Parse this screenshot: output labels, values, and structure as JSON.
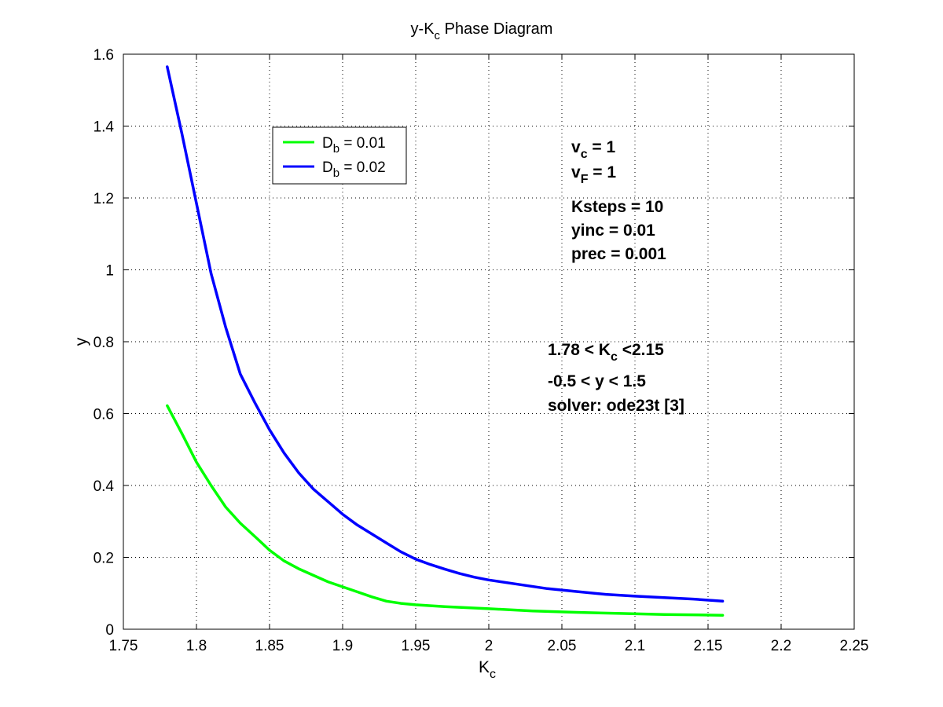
{
  "chart_data": {
    "type": "line",
    "title": "y-K",
    "title_sub": "c",
    "title_rest": " Phase Diagram",
    "xlabel": "K",
    "xlabel_sub": "c",
    "ylabel": "y",
    "xlim": [
      1.75,
      2.25
    ],
    "ylim": [
      0,
      1.6
    ],
    "x_ticks": [
      1.75,
      1.8,
      1.85,
      1.9,
      1.95,
      2.0,
      2.05,
      2.1,
      2.15,
      2.2,
      2.25
    ],
    "x_tick_labels": [
      "1.75",
      "1.8",
      "1.85",
      "1.9",
      "1.95",
      "2",
      "2.05",
      "2.1",
      "2.15",
      "2.2",
      "2.25"
    ],
    "y_ticks": [
      0,
      0.2,
      0.4,
      0.6,
      0.8,
      1.0,
      1.2,
      1.4,
      1.6
    ],
    "y_tick_labels": [
      "0",
      "0.2",
      "0.4",
      "0.6",
      "0.8",
      "1",
      "1.2",
      "1.4",
      "1.6"
    ],
    "grid": true,
    "grid_style": "dotted",
    "legend_position": "top-left",
    "series": [
      {
        "name": "D",
        "name_sub": "b",
        "name_rest": " = 0.01",
        "color": "#00ff00",
        "x": [
          1.78,
          1.79,
          1.8,
          1.81,
          1.82,
          1.83,
          1.84,
          1.85,
          1.86,
          1.87,
          1.88,
          1.89,
          1.9,
          1.91,
          1.92,
          1.93,
          1.94,
          1.95,
          1.97,
          2.0,
          2.03,
          2.06,
          2.09,
          2.12,
          2.16
        ],
        "y": [
          0.622,
          0.545,
          0.465,
          0.4,
          0.34,
          0.295,
          0.258,
          0.22,
          0.19,
          0.168,
          0.15,
          0.132,
          0.118,
          0.104,
          0.09,
          0.078,
          0.072,
          0.068,
          0.063,
          0.057,
          0.051,
          0.047,
          0.044,
          0.041,
          0.039
        ]
      },
      {
        "name": "D",
        "name_sub": "b",
        "name_rest": " = 0.02",
        "color": "#0000ff",
        "x": [
          1.78,
          1.79,
          1.8,
          1.81,
          1.82,
          1.83,
          1.84,
          1.85,
          1.86,
          1.87,
          1.88,
          1.89,
          1.9,
          1.91,
          1.92,
          1.93,
          1.94,
          1.95,
          1.96,
          1.97,
          1.98,
          1.99,
          2.0,
          2.02,
          2.04,
          2.06,
          2.08,
          2.1,
          2.12,
          2.14,
          2.16
        ],
        "y": [
          1.565,
          1.38,
          1.185,
          0.99,
          0.84,
          0.71,
          0.63,
          0.555,
          0.49,
          0.435,
          0.39,
          0.355,
          0.32,
          0.29,
          0.265,
          0.24,
          0.215,
          0.195,
          0.18,
          0.167,
          0.155,
          0.145,
          0.137,
          0.125,
          0.113,
          0.105,
          0.097,
          0.092,
          0.088,
          0.084,
          0.078
        ]
      }
    ],
    "annotations_block_1": [
      {
        "main": "v",
        "sub": "c",
        "rest": " = 1"
      },
      {
        "main": "v",
        "sub": "F",
        "rest": " = 1"
      },
      {
        "main": "Ksteps = 10",
        "sub": "",
        "rest": ""
      },
      {
        "main": "yinc = 0.01",
        "sub": "",
        "rest": ""
      },
      {
        "main": "prec = 0.001",
        "sub": "",
        "rest": ""
      }
    ],
    "annotations_block_2": [
      {
        "main": "1.78 < K",
        "sub": "c",
        "rest": " <2.15"
      },
      {
        "main": "-0.5 < y < 1.5",
        "sub": "",
        "rest": ""
      },
      {
        "main": "solver: ode23t [3]",
        "sub": "",
        "rest": ""
      }
    ]
  }
}
